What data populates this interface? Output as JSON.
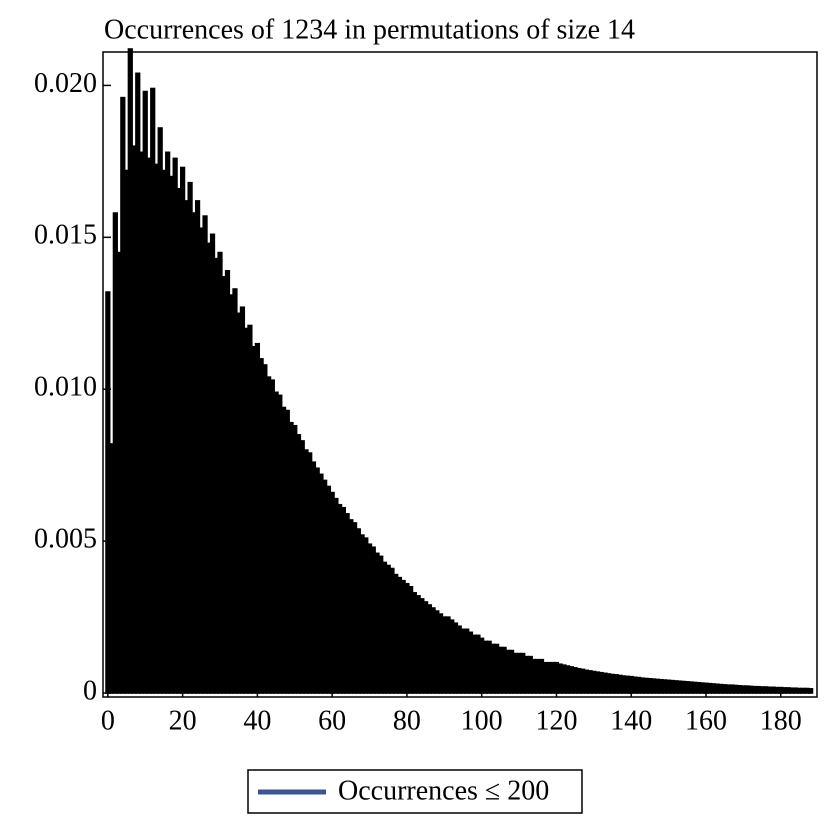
{
  "chart_data": {
    "type": "bar",
    "title": "Occurrences of 1234 in permutations of size 14",
    "x": [
      0,
      1,
      2,
      3,
      4,
      5,
      6,
      7,
      8,
      9,
      10,
      11,
      12,
      13,
      14,
      15,
      16,
      17,
      18,
      19,
      20,
      21,
      22,
      23,
      24,
      25,
      26,
      27,
      28,
      29,
      30,
      31,
      32,
      33,
      34,
      35,
      36,
      37,
      38,
      39,
      40,
      41,
      42,
      43,
      44,
      45,
      46,
      47,
      48,
      49,
      50,
      51,
      52,
      53,
      54,
      55,
      56,
      57,
      58,
      59,
      60,
      61,
      62,
      63,
      64,
      65,
      66,
      67,
      68,
      69,
      70,
      71,
      72,
      73,
      74,
      75,
      76,
      77,
      78,
      79,
      80,
      81,
      82,
      83,
      84,
      85,
      86,
      87,
      88,
      89,
      90,
      91,
      92,
      93,
      94,
      95,
      96,
      97,
      98,
      99,
      100,
      101,
      102,
      103,
      104,
      105,
      106,
      107,
      108,
      109,
      110,
      111,
      112,
      113,
      114,
      115,
      116,
      117,
      118,
      119,
      120,
      121,
      122,
      123,
      124,
      125,
      126,
      127,
      128,
      129,
      130,
      131,
      132,
      133,
      134,
      135,
      136,
      137,
      138,
      139,
      140,
      141,
      142,
      143,
      144,
      145,
      146,
      147,
      148,
      149,
      150,
      151,
      152,
      153,
      154,
      155,
      156,
      157,
      158,
      159,
      160,
      161,
      162,
      163,
      164,
      165,
      166,
      167,
      168,
      169,
      170,
      171,
      172,
      173,
      174,
      175,
      176,
      177,
      178,
      179,
      180,
      181,
      182,
      183,
      184,
      185,
      186,
      187,
      188
    ],
    "series": [
      {
        "name": "Occurrences ≤ 200",
        "color": "#000000",
        "legend_color": "#3a5590",
        "values": [
          0.0132,
          0.0082,
          0.0158,
          0.0145,
          0.0196,
          0.0172,
          0.0212,
          0.018,
          0.0204,
          0.0178,
          0.0198,
          0.0176,
          0.0199,
          0.0174,
          0.0186,
          0.0172,
          0.0178,
          0.017,
          0.0176,
          0.0166,
          0.0173,
          0.0162,
          0.0168,
          0.0158,
          0.0162,
          0.0153,
          0.0157,
          0.0148,
          0.0151,
          0.0143,
          0.0145,
          0.0137,
          0.0139,
          0.0131,
          0.0133,
          0.0125,
          0.0127,
          0.012,
          0.0121,
          0.0114,
          0.0115,
          0.011,
          0.0108,
          0.0104,
          0.0103,
          0.0099,
          0.0098,
          0.0094,
          0.0093,
          0.0089,
          0.0088,
          0.0085,
          0.0083,
          0.008,
          0.0079,
          0.0076,
          0.0074,
          0.0072,
          0.007,
          0.0068,
          0.0066,
          0.0064,
          0.0062,
          0.0061,
          0.0059,
          0.0057,
          0.0056,
          0.0054,
          0.0052,
          0.0051,
          0.0049,
          0.0048,
          0.0046,
          0.0045,
          0.0043,
          0.0042,
          0.0041,
          0.0039,
          0.0038,
          0.0037,
          0.0036,
          0.0035,
          0.0033,
          0.0032,
          0.0031,
          0.003,
          0.0029,
          0.0028,
          0.0027,
          0.0026,
          0.0025,
          0.0025,
          0.0024,
          0.0023,
          0.0022,
          0.0021,
          0.0021,
          0.002,
          0.0019,
          0.0019,
          0.0018,
          0.0017,
          0.0017,
          0.0016,
          0.0016,
          0.0015,
          0.0015,
          0.0014,
          0.0014,
          0.0013,
          0.0013,
          0.0013,
          0.0012,
          0.0012,
          0.0011,
          0.0011,
          0.0011,
          0.001,
          0.001,
          0.001,
          0.001,
          0.00095,
          0.00092,
          0.00089,
          0.00086,
          0.00083,
          0.0008,
          0.00078,
          0.00075,
          0.00073,
          0.00071,
          0.00069,
          0.00067,
          0.00065,
          0.00063,
          0.00061,
          0.0006,
          0.00058,
          0.00056,
          0.00055,
          0.00054,
          0.00052,
          0.00051,
          0.00049,
          0.00048,
          0.00047,
          0.00046,
          0.00045,
          0.00044,
          0.00043,
          0.00042,
          0.00041,
          0.0004,
          0.00039,
          0.00038,
          0.00037,
          0.00036,
          0.00035,
          0.00034,
          0.00033,
          0.00032,
          0.00031,
          0.0003,
          0.00029,
          0.00028,
          0.00027,
          0.00026,
          0.00026,
          0.00025,
          0.00024,
          0.00023,
          0.00023,
          0.00022,
          0.00021,
          0.00021,
          0.0002,
          0.0002,
          0.00019,
          0.00019,
          0.00018,
          0.00018,
          0.00017,
          0.00017,
          0.00016,
          0.00016,
          0.00015,
          0.00015,
          0.00015,
          0.00014
        ]
      }
    ],
    "xlim": [
      -1.3,
      189.7
    ],
    "xticks": [
      0,
      20,
      40,
      60,
      80,
      100,
      120,
      140,
      160,
      180
    ],
    "ylim": [
      -0.00013,
      0.0211
    ],
    "yticks": [
      0,
      0.005,
      {
        "value": 0.01,
        "label": "0.010"
      },
      0.015,
      {
        "value": 0.02,
        "label": "0.020"
      }
    ]
  }
}
